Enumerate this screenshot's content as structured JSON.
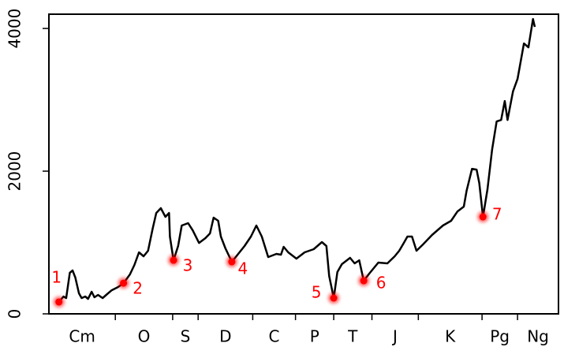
{
  "chart_data": {
    "type": "line",
    "categories": [
      "Cm",
      "O",
      "S",
      "D",
      "C",
      "P",
      "T",
      "J",
      "K",
      "Pg",
      "Ng"
    ],
    "period_boundaries": [
      487,
      424,
      396,
      336,
      289,
      247,
      205,
      154,
      84,
      45
    ],
    "xlim": [
      560,
      0
    ],
    "ylim": [
      0,
      4200
    ],
    "yticks": [
      0,
      2000,
      4000
    ],
    "series": [
      {
        "color": "#000000",
        "x": [
          549,
          544,
          541,
          537,
          534,
          531,
          527,
          524,
          520,
          517,
          513,
          510,
          506,
          501,
          496,
          491,
          484,
          478,
          471,
          466,
          461,
          456,
          451,
          446,
          442,
          437,
          432,
          428,
          427,
          423,
          418,
          414,
          407,
          402,
          395,
          388,
          383,
          379,
          374,
          371,
          366,
          359,
          354,
          345,
          338,
          332,
          326,
          319,
          310,
          305,
          302,
          297,
          288,
          279,
          269,
          260,
          255,
          252,
          247,
          243,
          238,
          229,
          224,
          219,
          214,
          208,
          198,
          188,
          180,
          175,
          170,
          166,
          161,
          156,
          149,
          139,
          127,
          118,
          111,
          104,
          101,
          95,
          90,
          87,
          83,
          78,
          73,
          68,
          63,
          59,
          56,
          50,
          45,
          38,
          33,
          28,
          26
        ],
        "values": [
          166,
          243,
          221,
          575,
          608,
          508,
          287,
          221,
          243,
          210,
          309,
          232,
          265,
          221,
          276,
          331,
          376,
          430,
          553,
          685,
          862,
          807,
          884,
          1193,
          1414,
          1481,
          1359,
          1414,
          1083,
          751,
          950,
          1238,
          1271,
          1171,
          994,
          1061,
          1127,
          1348,
          1304,
          1083,
          917,
          729,
          807,
          950,
          1083,
          1238,
          1083,
          796,
          840,
          829,
          939,
          862,
          774,
          862,
          906,
          1006,
          950,
          530,
          221,
          586,
          696,
          785,
          707,
          751,
          464,
          564,
          718,
          707,
          807,
          884,
          994,
          1083,
          1083,
          884,
          972,
          1105,
          1238,
          1304,
          1436,
          1503,
          1724,
          2033,
          2022,
          1834,
          1359,
          1746,
          2298,
          2696,
          2718,
          2983,
          2718,
          3116,
          3293,
          3790,
          3735,
          4133,
          4022
        ]
      }
    ],
    "highlights": {
      "color": "#ff0000",
      "x": [
        549,
        478,
        423,
        359,
        247,
        214,
        83
      ],
      "values": [
        166,
        430,
        751,
        729,
        221,
        464,
        1359
      ],
      "labels": [
        "1",
        "2",
        "3",
        "4",
        "5",
        "6",
        "7"
      ]
    }
  }
}
